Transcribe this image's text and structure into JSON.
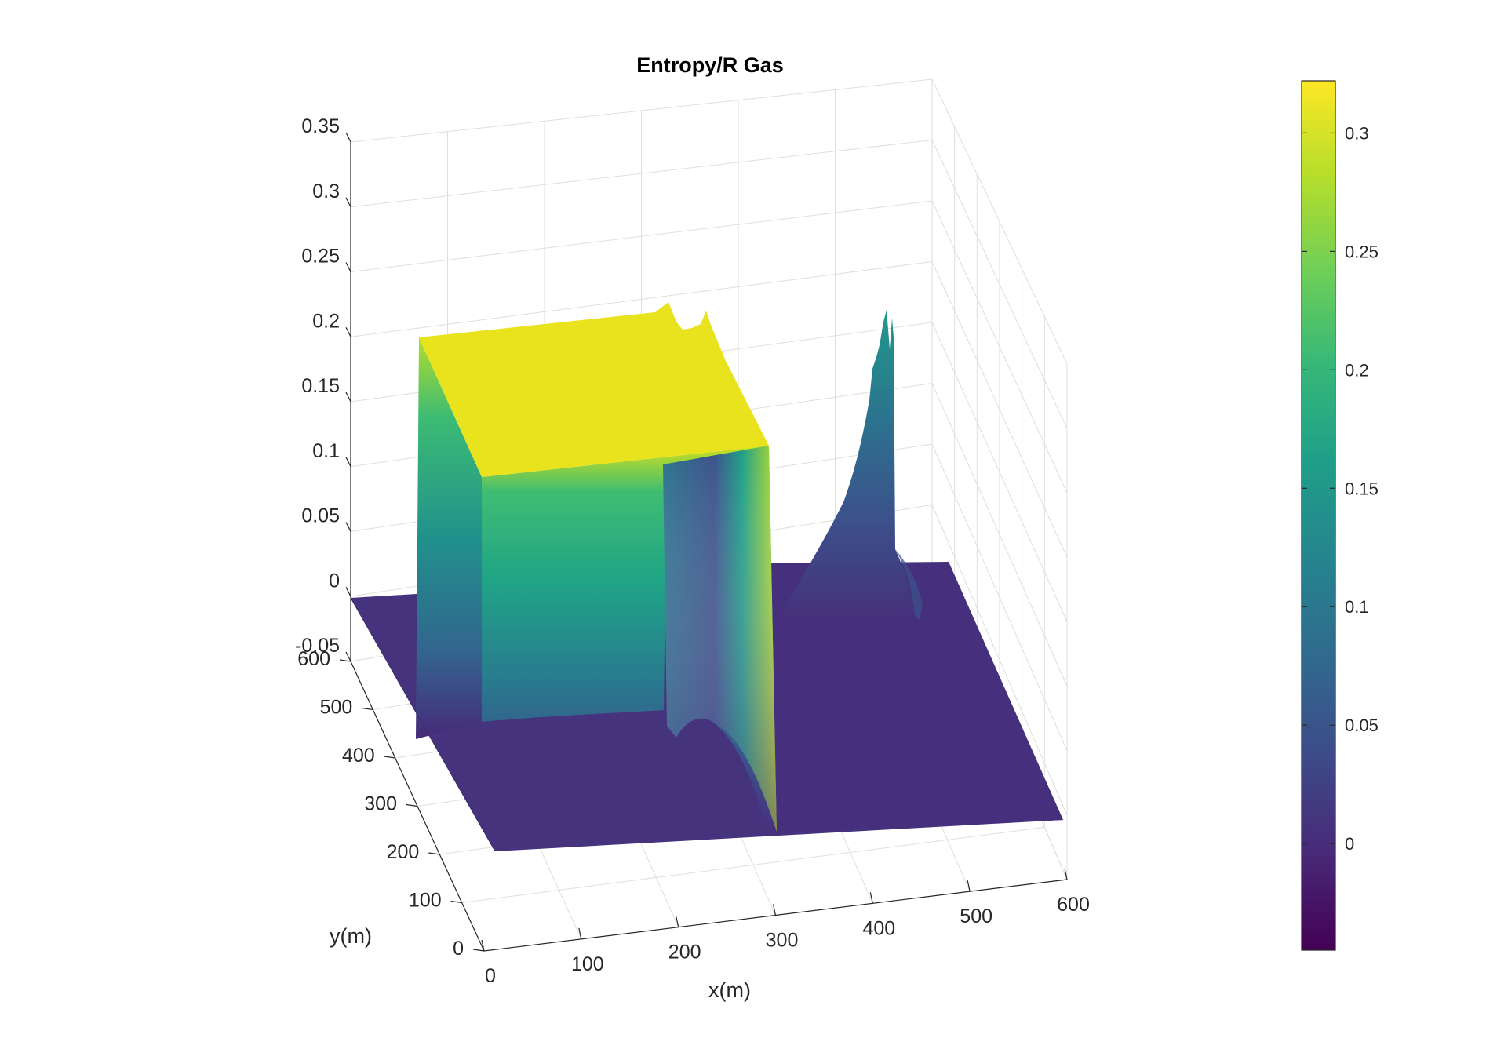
{
  "chart_data": {
    "type": "surface",
    "title": "Entropy/R Gas",
    "xlabel": "x(m)",
    "ylabel": "y(m)",
    "zlabel": "",
    "xlim": [
      0,
      600
    ],
    "ylim": [
      0,
      600
    ],
    "zlim": [
      -0.05,
      0.35
    ],
    "x_ticks": [
      "0",
      "100",
      "200",
      "300",
      "400",
      "500",
      "600"
    ],
    "y_ticks": [
      "0",
      "100",
      "200",
      "300",
      "400",
      "500",
      "600"
    ],
    "z_ticks": [
      "-0.05",
      "0",
      "0.05",
      "0.1",
      "0.15",
      "0.2",
      "0.25",
      "0.3",
      "0.35"
    ],
    "grid": true,
    "colormap": "viridis",
    "colorbar": {
      "location": "right",
      "clim": [
        -0.045,
        0.322
      ],
      "ticks": [
        "0",
        "0.05",
        "0.1",
        "0.15",
        "0.2",
        "0.25",
        "0.3"
      ]
    },
    "features": [
      {
        "name": "plateau",
        "x_range": [
          0,
          300
        ],
        "y_range": [
          300,
          600
        ],
        "value": 0.322
      },
      {
        "name": "background",
        "x_range": [
          0,
          600
        ],
        "y_range": [
          0,
          600
        ],
        "value": 0
      },
      {
        "name": "peak",
        "x": 395,
        "y": 435,
        "value": 0.2
      }
    ]
  }
}
